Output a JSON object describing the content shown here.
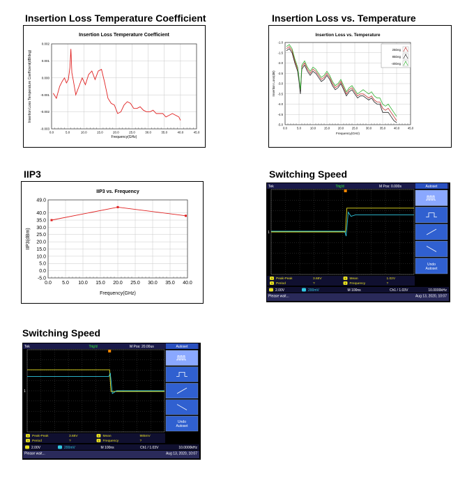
{
  "sections": {
    "il_coef": "Insertion Loss Temperature Coefficient",
    "il_temp": "Insertion Loss vs. Temperature",
    "iip3": "IIP3",
    "sw1": "Switching Speed",
    "sw2": "Switching Speed"
  },
  "chart_data": [
    {
      "type": "line",
      "title": "Insertion Loss Temperature Coefficient",
      "xlabel": "Frequency(GHz)",
      "ylabel": "Insertion Loss Temperature Coefficient(dB/deg)",
      "xlim": [
        0,
        45
      ],
      "ylim": [
        -0.003,
        0.002
      ],
      "xticks": [
        "0.0",
        "5.0",
        "10.0",
        "15.0",
        "20.0",
        "25.0",
        "30.0",
        "35.0",
        "40.0",
        "45.0"
      ],
      "yticks": [
        "0.002",
        "0.001",
        "0.000",
        "-0.001",
        "-0.002",
        "-0.003"
      ],
      "grid": true,
      "series": [
        {
          "color": "#e02020",
          "x": [
            0.5,
            1.5,
            2.5,
            3.3,
            4.0,
            4.6,
            5.2,
            5.7,
            6.0,
            6.3,
            6.8,
            7.5,
            8.5,
            9.5,
            10.5,
            11.5,
            12.5,
            13.5,
            14.5,
            15.5,
            16.5,
            17.5,
            18.5,
            19.5,
            20.5,
            21.5,
            22.5,
            23.5,
            24.5,
            25.5,
            26.5,
            27.5,
            28.5,
            29.5,
            30.5,
            31.5,
            32.5,
            33.5,
            34.5,
            35.5,
            36.5,
            37.5,
            38.5,
            39.5,
            40.0
          ],
          "y": [
            -0.0009,
            -0.0012,
            -0.0005,
            -0.0002,
            0.0,
            -0.0003,
            -0.0001,
            0.0006,
            0.0017,
            0.0003,
            -0.0002,
            -0.001,
            -0.0005,
            0.0,
            -0.0004,
            0.0002,
            0.0004,
            -0.0001,
            0.0004,
            0.0005,
            -0.0003,
            -0.0012,
            -0.0015,
            -0.0016,
            -0.0021,
            -0.002,
            -0.0016,
            -0.0014,
            -0.0015,
            -0.0018,
            -0.0018,
            -0.0017,
            -0.0019,
            -0.002,
            -0.002,
            -0.0019,
            -0.0021,
            -0.0021,
            -0.0021,
            -0.0023,
            -0.0022,
            -0.0021,
            -0.0022,
            -0.0023,
            -0.0025
          ]
        }
      ]
    },
    {
      "type": "line",
      "title": "Insertion Loss vs. Temperature",
      "xlabel": "Frequency(GHz)",
      "ylabel": "Insertion Loss(dB)",
      "xlim": [
        0,
        45
      ],
      "ylim": [
        -5.0,
        -1.0
      ],
      "xticks": [
        "0.0",
        "5.0",
        "10.0",
        "15.0",
        "20.0",
        "25.0",
        "30.0",
        "35.0",
        "40.0",
        "45.0"
      ],
      "yticks": [
        "-1.0",
        "-1.5",
        "-2.0",
        "-2.5",
        "-3.0",
        "-3.5",
        "-4.0",
        "-4.5",
        "-5.0"
      ],
      "grid": true,
      "legend": "top-right",
      "x": [
        0.5,
        1.5,
        2.5,
        3.5,
        4.5,
        5.0,
        5.5,
        6.0,
        7.0,
        8.0,
        9.0,
        10.0,
        11.0,
        12.0,
        13.0,
        14.0,
        15.0,
        16.0,
        17.0,
        18.0,
        19.0,
        20.0,
        21.0,
        22.0,
        23.0,
        24.0,
        25.0,
        26.0,
        27.0,
        28.0,
        29.0,
        30.0,
        31.0,
        32.0,
        33.0,
        34.0,
        35.0,
        36.0,
        37.0,
        38.0,
        39.0,
        40.0
      ],
      "series": [
        {
          "name": "25Deg",
          "color": "#c03030",
          "y": [
            -1.3,
            -1.2,
            -1.4,
            -1.9,
            -2.3,
            -2.8,
            -3.4,
            -2.2,
            -2.0,
            -2.3,
            -2.5,
            -2.3,
            -2.4,
            -2.6,
            -2.8,
            -2.7,
            -2.5,
            -2.7,
            -3.0,
            -3.2,
            -3.1,
            -2.9,
            -3.2,
            -3.5,
            -3.3,
            -3.2,
            -3.4,
            -3.6,
            -3.5,
            -3.5,
            -3.6,
            -3.7,
            -3.6,
            -3.8,
            -3.9,
            -3.9,
            -4.2,
            -4.3,
            -4.2,
            -4.4,
            -4.6,
            -4.8
          ]
        },
        {
          "name": "85Deg",
          "color": "#202020",
          "y": [
            -1.4,
            -1.3,
            -1.5,
            -2.0,
            -2.4,
            -2.9,
            -3.5,
            -2.3,
            -2.1,
            -2.4,
            -2.6,
            -2.4,
            -2.5,
            -2.7,
            -2.9,
            -2.8,
            -2.6,
            -2.8,
            -3.1,
            -3.3,
            -3.2,
            -3.0,
            -3.3,
            -3.6,
            -3.4,
            -3.3,
            -3.5,
            -3.7,
            -3.6,
            -3.6,
            -3.7,
            -3.8,
            -3.7,
            -3.9,
            -4.0,
            -4.0,
            -4.4,
            -4.4,
            -4.4,
            -4.6,
            -4.8,
            -4.9
          ]
        },
        {
          "name": "-40Deg",
          "color": "#30b030",
          "y": [
            -1.2,
            -1.1,
            -1.3,
            -1.8,
            -2.2,
            -2.7,
            -3.3,
            -2.1,
            -1.9,
            -2.2,
            -2.4,
            -2.2,
            -2.3,
            -2.5,
            -2.7,
            -2.6,
            -2.4,
            -2.6,
            -2.9,
            -3.1,
            -3.0,
            -2.8,
            -3.1,
            -3.4,
            -3.2,
            -3.1,
            -3.3,
            -3.5,
            -3.4,
            -3.3,
            -3.4,
            -3.5,
            -3.4,
            -3.6,
            -3.7,
            -3.7,
            -4.0,
            -4.1,
            -4.0,
            -4.2,
            -4.4,
            -4.6
          ]
        }
      ]
    },
    {
      "type": "line",
      "title": "IIP3 vs. Frequency",
      "xlabel": "Frequency(GHz)",
      "ylabel": "IIP3(dBm)",
      "xlim": [
        0,
        40
      ],
      "ylim": [
        -5.0,
        49.0
      ],
      "xticks": [
        "0.0",
        "5.0",
        "10.0",
        "15.0",
        "20.0",
        "25.0",
        "30.0",
        "35.0",
        "40.0"
      ],
      "yticks": [
        "49.0",
        "40.0",
        "35.0",
        "30.0",
        "25.0",
        "20.0",
        "15.0",
        "10.0",
        "5.0",
        "0.0",
        "-5.0"
      ],
      "yticks_values": [
        49,
        40,
        35,
        30,
        25,
        20,
        15,
        10,
        5,
        0,
        -5
      ],
      "grid": true,
      "series": [
        {
          "color": "#e02020",
          "x": [
            1,
            20,
            39.5
          ],
          "y": [
            35,
            44,
            38
          ]
        }
      ]
    }
  ],
  "scopes": [
    {
      "header_left": "Tek",
      "header_run": "Trig'd",
      "header_pos": "M Pos: 0.000s",
      "side_title": "Autoset",
      "side_undo": "Undo Autoset",
      "meas": [
        {
          "label": "Peak-Peak",
          "value": "3.68V"
        },
        {
          "label": "Mean",
          "value": "1.02V"
        },
        {
          "label": "Period",
          "value": "?"
        },
        {
          "label": "Frequency",
          "value": "?"
        }
      ],
      "ch1": "2.00V",
      "ch2": "200mV",
      "timebase": "M 100ns",
      "trig": "Ch1 / 1.03V",
      "freq": "10.0000kHz",
      "status": "Please wait...",
      "date": "Aug 13, 2020, 10:07"
    },
    {
      "header_left": "Tek",
      "header_run": "Trig'd",
      "header_pos": "M Pos: 20.00us",
      "side_title": "Autoset",
      "side_undo": "Undo Autoset",
      "meas": [
        {
          "label": "Peak-Peak",
          "value": "3.68V"
        },
        {
          "label": "Mean",
          "value": "985mV"
        },
        {
          "label": "Period",
          "value": "?"
        },
        {
          "label": "Frequency",
          "value": "?"
        }
      ],
      "ch1": "2.00V",
      "ch2": "200mV",
      "timebase": "M 100ns",
      "trig": "Ch1 / 1.03V",
      "freq": "10.0000kHz",
      "status": "Please wait...",
      "date": "Aug 13, 2020, 10:07"
    }
  ]
}
